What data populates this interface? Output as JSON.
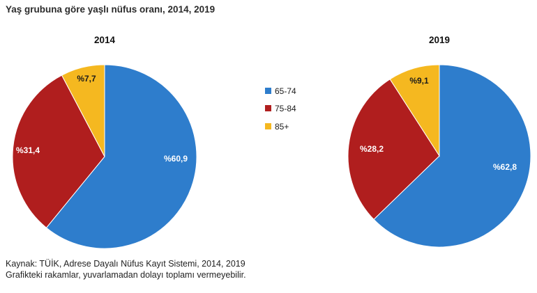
{
  "title": "Yaş grubuna göre yaşlı nüfus oranı, 2014, 2019",
  "colors": {
    "65-74": "#2e7dcc",
    "75-84": "#b01e1e",
    "85+": "#f5b820"
  },
  "chart_data": [
    {
      "type": "pie",
      "title": "2014",
      "categories": [
        "65-74",
        "75-84",
        "85+"
      ],
      "values": [
        60.9,
        31.4,
        7.7
      ],
      "data_labels": [
        "%60,9",
        "%31,4",
        "%7,7"
      ]
    },
    {
      "type": "pie",
      "title": "2019",
      "categories": [
        "65-74",
        "75-84",
        "85+"
      ],
      "values": [
        62.8,
        28.2,
        9.1
      ],
      "data_labels": [
        "%62,8",
        "%28,2",
        "%9,1"
      ]
    }
  ],
  "legend": {
    "placement": "center",
    "items": [
      "65-74",
      "75-84",
      "85+"
    ]
  },
  "footnotes": {
    "source": "Kaynak: TÜİK, Adrese Dayalı Nüfus Kayıt Sistemi, 2014, 2019",
    "note": "Grafikteki rakamlar, yuvarlamadan dolayı toplamı vermeyebilir."
  }
}
